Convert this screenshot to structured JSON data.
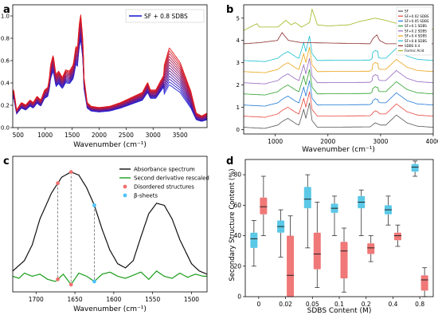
{
  "panels": [
    "a",
    "b",
    "c",
    "d"
  ],
  "chart_data": [
    {
      "id": "a",
      "type": "line",
      "xlabel": "Wavenumber (cm⁻¹)",
      "ylabel": "",
      "xlim": [
        400,
        4000
      ],
      "ylim": [
        0,
        1.1
      ],
      "xticks": [
        500,
        1000,
        1500,
        2000,
        2500,
        3000,
        3500
      ],
      "yticks": [
        0.0,
        0.2,
        0.4,
        0.6,
        0.8,
        1.0
      ],
      "legend": "SF + 0.8 SDBS",
      "legend_position": "top-right",
      "gradient_colors": [
        "#1f1fd6",
        "#e21a1a"
      ],
      "anchor_points": [
        [
          420,
          0.3
        ],
        [
          470,
          0.14
        ],
        [
          560,
          0.2
        ],
        [
          640,
          0.18
        ],
        [
          720,
          0.22
        ],
        [
          780,
          0.2
        ],
        [
          850,
          0.25
        ],
        [
          920,
          0.22
        ],
        [
          990,
          0.3
        ],
        [
          1050,
          0.32
        ],
        [
          1080,
          0.4
        ],
        [
          1100,
          0.5
        ],
        [
          1150,
          0.58
        ],
        [
          1200,
          0.42
        ],
        [
          1250,
          0.45
        ],
        [
          1320,
          0.4
        ],
        [
          1380,
          0.46
        ],
        [
          1450,
          0.45
        ],
        [
          1520,
          0.5
        ],
        [
          1570,
          0.65
        ],
        [
          1600,
          0.63
        ],
        [
          1630,
          0.82
        ],
        [
          1660,
          0.9
        ],
        [
          1700,
          0.7
        ],
        [
          1720,
          0.4
        ],
        [
          1780,
          0.2
        ],
        [
          1850,
          0.17
        ],
        [
          2000,
          0.16
        ],
        [
          2200,
          0.17
        ],
        [
          2400,
          0.2
        ],
        [
          2600,
          0.24
        ],
        [
          2800,
          0.28
        ],
        [
          2900,
          0.36
        ],
        [
          2950,
          0.3
        ],
        [
          3050,
          0.3
        ],
        [
          3200,
          0.42
        ],
        [
          3300,
          0.55
        ],
        [
          3400,
          0.5
        ],
        [
          3500,
          0.45
        ],
        [
          3600,
          0.35
        ],
        [
          3700,
          0.25
        ],
        [
          3800,
          0.1
        ],
        [
          3900,
          0.08
        ],
        [
          4000,
          0.1
        ]
      ]
    },
    {
      "id": "b",
      "type": "line",
      "xlabel": "Wavenumber (cm⁻¹)",
      "ylabel": "",
      "xlim": [
        400,
        4000
      ],
      "ylim": [
        -0.2,
        5.6
      ],
      "xticks": [
        1000,
        2000,
        3000,
        4000
      ],
      "yticks": [
        0,
        1,
        2,
        3,
        4,
        5
      ],
      "legend_position": "top-right",
      "series": [
        {
          "name": "SF",
          "color": "#555555",
          "offset": 0
        },
        {
          "name": "SF+0.02 SDBS",
          "color": "#e8453c",
          "offset": 0.5
        },
        {
          "name": "SF+0.05 SDBS",
          "color": "#1f77d4",
          "offset": 1.0
        },
        {
          "name": "SF+0.1 SDBS",
          "color": "#2ca02c",
          "offset": 1.5
        },
        {
          "name": "SF+0.2 SDBS",
          "color": "#9467bd",
          "offset": 2.0
        },
        {
          "name": "SF+0.4 SDBS",
          "color": "#e8a417",
          "offset": 2.5
        },
        {
          "name": "SF+0.8 SDBS",
          "color": "#17becf",
          "offset": 3.0
        },
        {
          "name": "SDBS 0.4",
          "color": "#8c2d2d",
          "offset": 3.8
        },
        {
          "name": "Formic Acid",
          "color": "#9fb51c",
          "offset": 4.4
        }
      ],
      "sf_profile": [
        [
          400,
          0.1
        ],
        [
          800,
          0.05
        ],
        [
          1050,
          0.2
        ],
        [
          1100,
          0.3
        ],
        [
          1160,
          0.4
        ],
        [
          1240,
          0.5
        ],
        [
          1400,
          0.25
        ],
        [
          1450,
          0.2
        ],
        [
          1540,
          0.9
        ],
        [
          1580,
          0.5
        ],
        [
          1650,
          1.2
        ],
        [
          1700,
          0.4
        ],
        [
          1800,
          0.1
        ],
        [
          2800,
          0.12
        ],
        [
          2900,
          0.3
        ],
        [
          3000,
          0.2
        ],
        [
          3100,
          0.2
        ],
        [
          3300,
          0.65
        ],
        [
          3500,
          0.3
        ],
        [
          3700,
          0.15
        ],
        [
          4000,
          0.1
        ]
      ],
      "sdbs_profile": [
        [
          400,
          0.05
        ],
        [
          700,
          0.1
        ],
        [
          1040,
          0.2
        ],
        [
          1130,
          0.55
        ],
        [
          1180,
          0.4
        ],
        [
          1250,
          0.2
        ],
        [
          1500,
          0.1
        ],
        [
          1600,
          0.1
        ],
        [
          2800,
          0.05
        ],
        [
          2860,
          0.3
        ],
        [
          2930,
          0.45
        ],
        [
          2980,
          0.2
        ],
        [
          3100,
          0.05
        ],
        [
          4000,
          0.05
        ]
      ],
      "formic_profile": [
        [
          400,
          0.05
        ],
        [
          650,
          0.35
        ],
        [
          700,
          0.2
        ],
        [
          1050,
          0.2
        ],
        [
          1200,
          0.5
        ],
        [
          1300,
          0.3
        ],
        [
          1380,
          0.4
        ],
        [
          1500,
          0.2
        ],
        [
          1650,
          0.4
        ],
        [
          1700,
          1.0
        ],
        [
          1800,
          0.3
        ],
        [
          2000,
          0.25
        ],
        [
          2400,
          0.3
        ],
        [
          2600,
          0.45
        ],
        [
          2900,
          0.6
        ],
        [
          3100,
          0.5
        ],
        [
          3400,
          0.3
        ],
        [
          3600,
          0.15
        ],
        [
          4000,
          0.1
        ]
      ]
    },
    {
      "id": "c",
      "type": "line",
      "xlabel": "Wavenumber (cm⁻¹)",
      "ylabel": "",
      "xlim": [
        1730,
        1480
      ],
      "ylim": [
        -0.15,
        1.15
      ],
      "xticks": [
        1700,
        1650,
        1600,
        1550,
        1500
      ],
      "legend_position": "top-right",
      "series": [
        {
          "name": "Absorbance spectrum",
          "color": "#111111",
          "points": [
            [
              1730,
              0.05
            ],
            [
              1715,
              0.15
            ],
            [
              1705,
              0.3
            ],
            [
              1695,
              0.55
            ],
            [
              1680,
              0.8
            ],
            [
              1667,
              0.95
            ],
            [
              1655,
              1.0
            ],
            [
              1645,
              0.97
            ],
            [
              1635,
              0.85
            ],
            [
              1625,
              0.68
            ],
            [
              1615,
              0.45
            ],
            [
              1605,
              0.25
            ],
            [
              1595,
              0.12
            ],
            [
              1585,
              0.08
            ],
            [
              1575,
              0.15
            ],
            [
              1565,
              0.38
            ],
            [
              1555,
              0.6
            ],
            [
              1545,
              0.7
            ],
            [
              1535,
              0.68
            ],
            [
              1525,
              0.55
            ],
            [
              1515,
              0.35
            ],
            [
              1500,
              0.12
            ],
            [
              1490,
              0.05
            ],
            [
              1480,
              0.02
            ]
          ]
        },
        {
          "name": "Second derivative rescaled",
          "color": "#1a9c1a",
          "points": [
            [
              1730,
              0.0
            ],
            [
              1722,
              -0.02
            ],
            [
              1715,
              0.03
            ],
            [
              1705,
              0.0
            ],
            [
              1695,
              0.02
            ],
            [
              1685,
              -0.03
            ],
            [
              1675,
              -0.05
            ],
            [
              1665,
              0.02
            ],
            [
              1655,
              -0.08
            ],
            [
              1645,
              0.03
            ],
            [
              1635,
              0.0
            ],
            [
              1625,
              -0.05
            ],
            [
              1615,
              0.02
            ],
            [
              1605,
              0.04
            ],
            [
              1595,
              0.0
            ],
            [
              1585,
              -0.02
            ],
            [
              1575,
              0.01
            ],
            [
              1565,
              0.04
            ],
            [
              1555,
              -0.03
            ],
            [
              1545,
              0.05
            ],
            [
              1535,
              0.0
            ],
            [
              1525,
              -0.02
            ],
            [
              1515,
              0.03
            ],
            [
              1505,
              -0.01
            ],
            [
              1495,
              0.02
            ],
            [
              1485,
              0.0
            ],
            [
              1480,
              0.0
            ]
          ]
        }
      ],
      "markers": [
        {
          "name": "Disordered structures",
          "color": "#f07070",
          "x": [
            1672,
            1655
          ]
        },
        {
          "name": "β-sheets",
          "color": "#4fc3f7",
          "x": [
            1625
          ]
        }
      ]
    },
    {
      "id": "d",
      "type": "box",
      "xlabel": "SDBS Content (M)",
      "ylabel": "Secondary Structure Content (%)",
      "ylim": [
        0,
        90
      ],
      "yticks": [
        0,
        20,
        40,
        60,
        80
      ],
      "categories": [
        "0",
        "0.02",
        "0.05",
        "0.1",
        "0.2",
        "0.4",
        "0.8"
      ],
      "series": [
        {
          "name": "β-sheets",
          "color": "#5bc8e6",
          "boxes": [
            {
              "min": 20,
              "q1": 32,
              "median": 38,
              "q3": 42,
              "max": 50
            },
            {
              "min": 26,
              "q1": 42,
              "median": 46,
              "q3": 50,
              "max": 57
            },
            {
              "min": 32,
              "q1": 58,
              "median": 64,
              "q3": 72,
              "max": 80
            },
            {
              "min": 40,
              "q1": 55,
              "median": 58,
              "q3": 61,
              "max": 66
            },
            {
              "min": 40,
              "q1": 58,
              "median": 62,
              "q3": 66,
              "max": 70
            },
            {
              "min": 47,
              "q1": 54,
              "median": 57,
              "q3": 60,
              "max": 66
            },
            {
              "min": 79,
              "q1": 82,
              "median": 85,
              "q3": 87,
              "max": 89
            }
          ]
        },
        {
          "name": "Disordered structures",
          "color": "#f07878",
          "boxes": [
            {
              "min": 40,
              "q1": 54,
              "median": 59,
              "q3": 65,
              "max": 79
            },
            {
              "min": 0,
              "q1": 0,
              "median": 14,
              "q3": 40,
              "max": 53
            },
            {
              "min": 6,
              "q1": 18,
              "median": 28,
              "q3": 42,
              "max": 62
            },
            {
              "min": 3,
              "q1": 12,
              "median": 30,
              "q3": 36,
              "max": 45
            },
            {
              "min": 23,
              "q1": 28,
              "median": 32,
              "q3": 35,
              "max": 40
            },
            {
              "min": 33,
              "q1": 37,
              "median": 40,
              "q3": 42,
              "max": 47
            },
            {
              "min": 0,
              "q1": 4,
              "median": 11,
              "q3": 14,
              "max": 19
            }
          ]
        }
      ]
    }
  ]
}
